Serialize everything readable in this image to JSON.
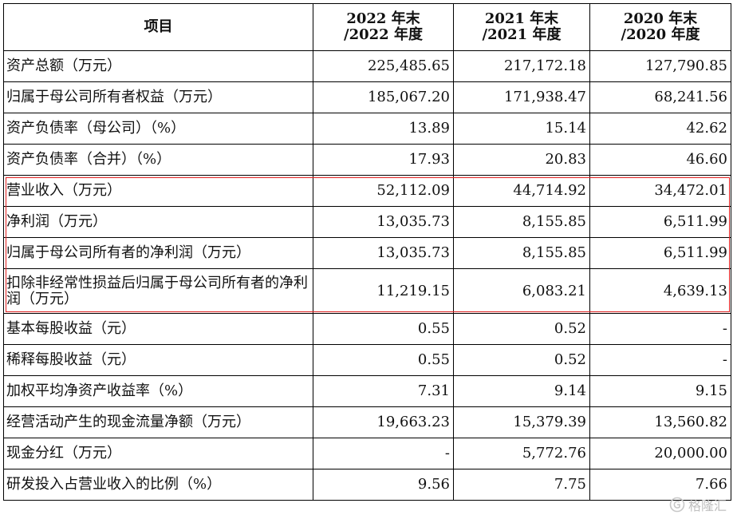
{
  "table": {
    "headers": [
      "项目",
      "2022 年末\n/2022 年度",
      "2021 年末\n/2021 年度",
      "2020 年末\n/2020 年度"
    ],
    "header_lines": [
      [
        "项目"
      ],
      [
        "2022 年末",
        "/2022 年度"
      ],
      [
        "2021 年末",
        "/2021 年度"
      ],
      [
        "2020 年末",
        "/2020 年度"
      ]
    ],
    "rows": [
      [
        "资产总额（万元）",
        "225,485.65",
        "217,172.18",
        "127,790.85"
      ],
      [
        "归属于母公司所有者权益（万元）",
        "185,067.20",
        "171,938.47",
        "68,241.56"
      ],
      [
        "资产负债率（母公司）（%）",
        "13.89",
        "15.14",
        "42.62"
      ],
      [
        "资产负债率（合并）（%）",
        "17.93",
        "20.83",
        "46.60"
      ],
      [
        "营业收入（万元）",
        "52,112.09",
        "44,714.92",
        "34,472.01"
      ],
      [
        "净利润（万元）",
        "13,035.73",
        "8,155.85",
        "6,511.99"
      ],
      [
        "归属于母公司所有者的净利润（万元）",
        "13,035.73",
        "8,155.85",
        "6,511.99"
      ],
      [
        "扣除非经常性损益后归属于母公司所有者的净利润（万元）",
        "11,219.15",
        "6,083.21",
        "4,639.13"
      ],
      [
        "基本每股收益（元）",
        "0.55",
        "0.52",
        "-"
      ],
      [
        "稀释每股收益（元）",
        "0.55",
        "0.52",
        "-"
      ],
      [
        "加权平均净资产收益率（%）",
        "7.31",
        "9.14",
        "9.15"
      ],
      [
        "经营活动产生的现金流量净额（万元）",
        "19,663.23",
        "15,379.39",
        "13,560.82"
      ],
      [
        "现金分红（万元）",
        "-",
        "5,772.76",
        "20,000.00"
      ],
      [
        "研发投入占营业收入的比例（%）",
        "9.56",
        "7.75",
        "7.66"
      ]
    ]
  },
  "highlight": {
    "color": "#e02020"
  },
  "watermark": {
    "text": "格隆汇",
    "icon": "gelonghui-logo-icon"
  }
}
